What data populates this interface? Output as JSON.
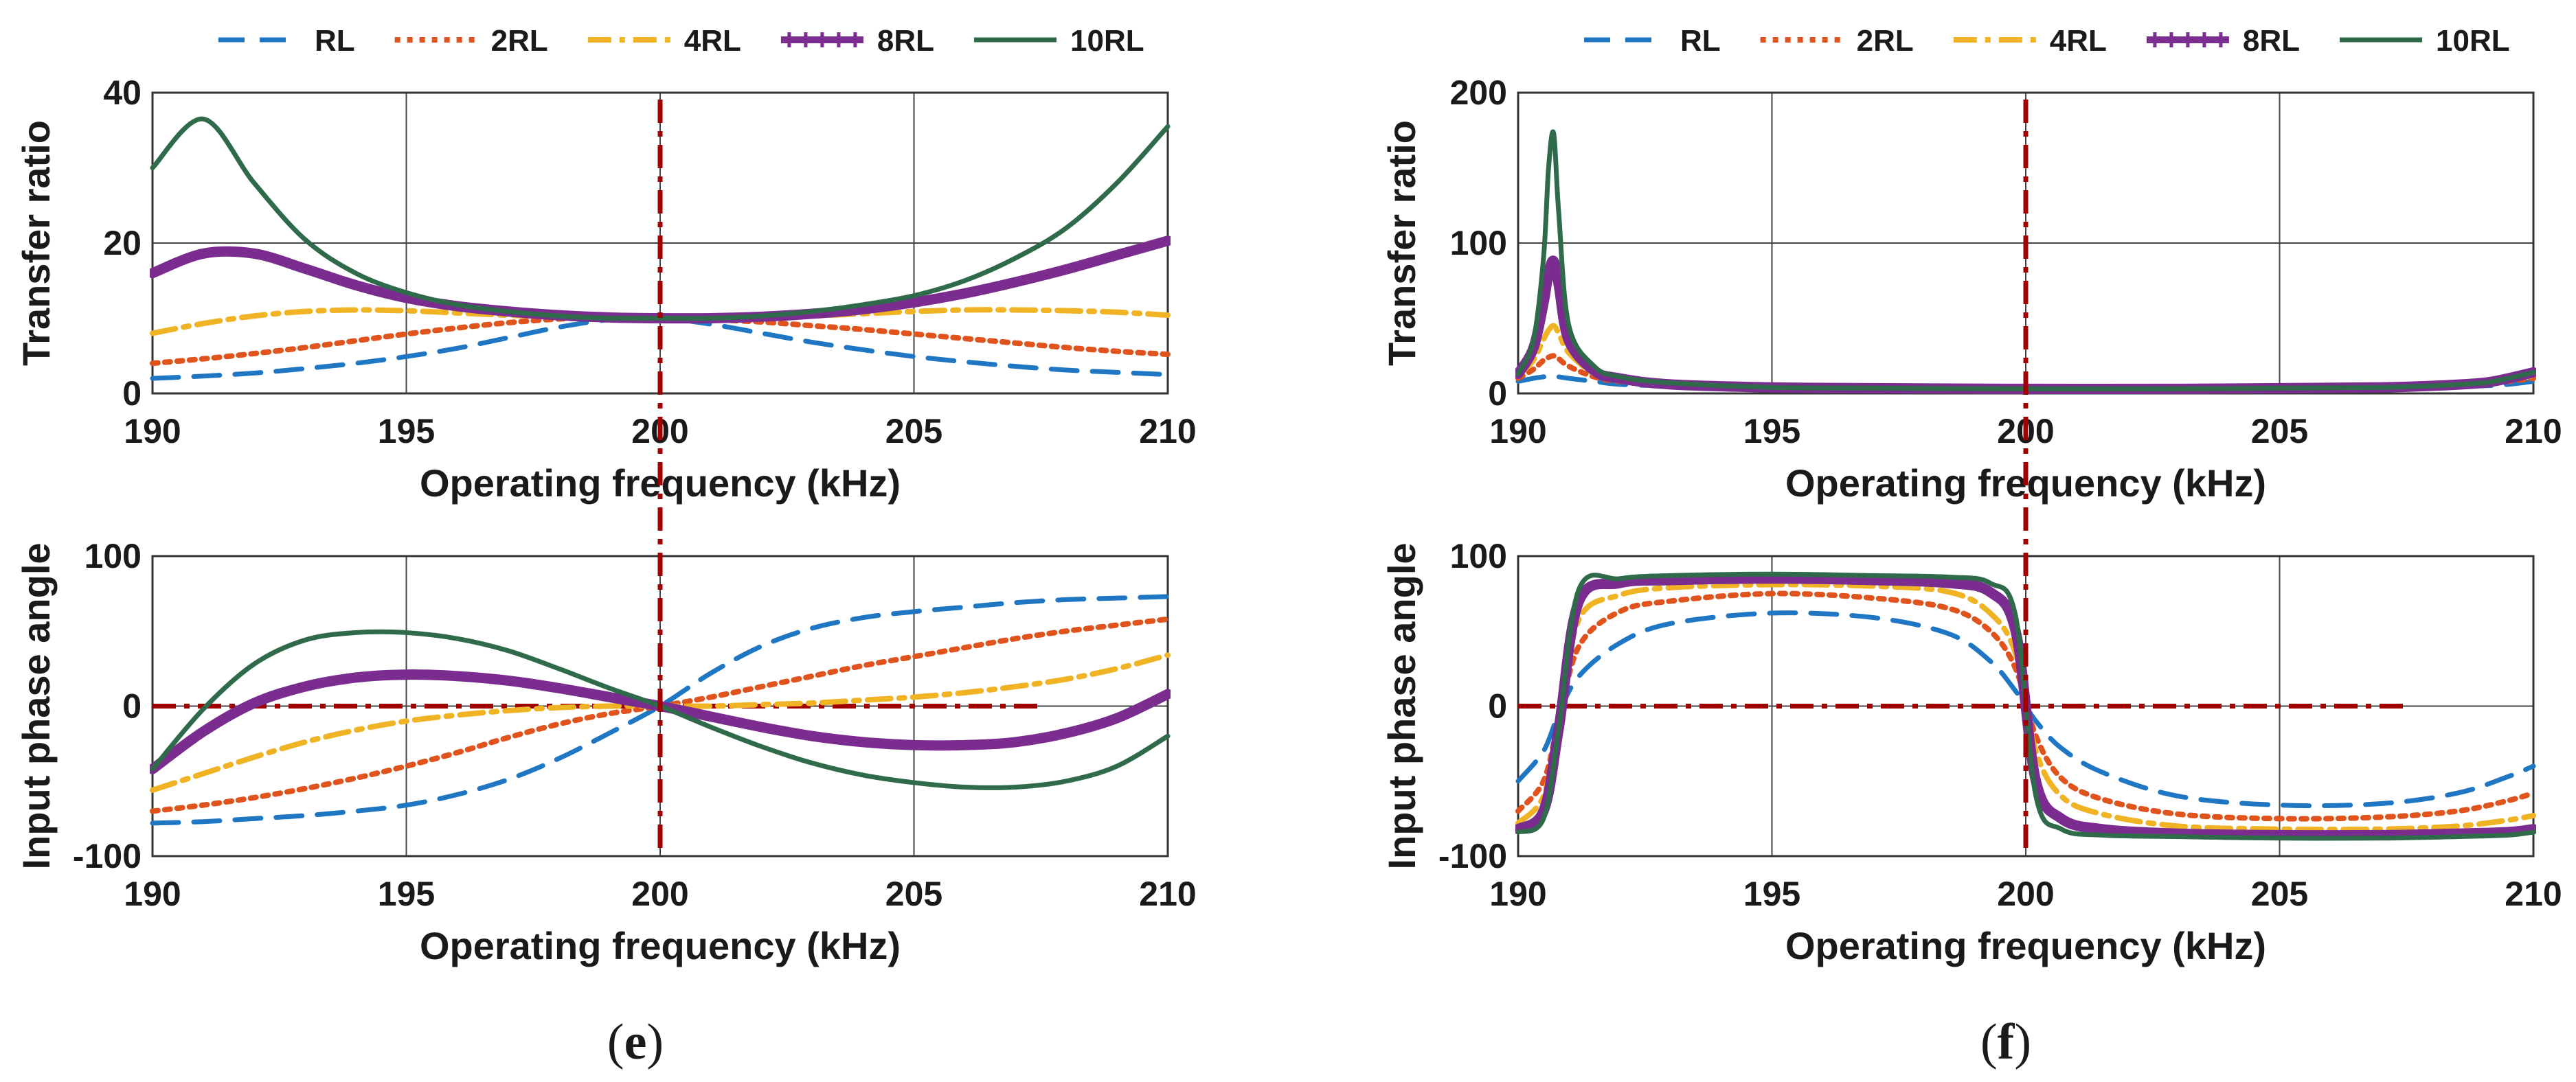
{
  "figure": {
    "label_e": "e",
    "label_f": "f"
  },
  "series_styles": [
    {
      "name": "RL",
      "color": "#1f77c4",
      "dash": "dash",
      "width": 7,
      "marker": false
    },
    {
      "name": "2RL",
      "color": "#e0531c",
      "dash": "dot",
      "width": 8,
      "marker": false
    },
    {
      "name": "4RL",
      "color": "#f0b323",
      "dash": "dashdot",
      "width": 8,
      "marker": false
    },
    {
      "name": "8RL",
      "color": "#7b2d8f",
      "dash": "solid",
      "width": 15,
      "marker": true
    },
    {
      "name": "10RL",
      "color": "#2f6b4a",
      "dash": "solid",
      "width": 7,
      "marker": false
    }
  ],
  "reference_line_color": "#a00000",
  "chart_data": [
    {
      "id": "e-top",
      "type": "line",
      "xlabel": "Operating frequency (kHz)",
      "ylabel": "Transfer ratio",
      "xlim": [
        190,
        210
      ],
      "ylim": [
        0,
        40
      ],
      "xticks": [
        190,
        195,
        200,
        205,
        210
      ],
      "yticks": [
        0,
        20,
        40
      ],
      "grid": true,
      "legend": "top",
      "x": [
        190,
        191,
        192,
        193,
        194,
        195,
        196,
        197,
        198,
        199,
        200,
        201,
        202,
        203,
        204,
        205,
        206,
        207,
        208,
        209,
        210
      ],
      "series": [
        {
          "name": "RL",
          "values": [
            2.0,
            2.3,
            2.7,
            3.3,
            4.0,
            4.9,
            6.0,
            7.4,
            8.8,
            9.8,
            10.0,
            9.2,
            8.0,
            6.8,
            5.8,
            4.9,
            4.2,
            3.6,
            3.1,
            2.8,
            2.5
          ]
        },
        {
          "name": "2RL",
          "values": [
            4.0,
            4.6,
            5.3,
            6.1,
            7.0,
            7.9,
            8.7,
            9.4,
            9.9,
            10.1,
            10.0,
            9.8,
            9.5,
            9.0,
            8.5,
            7.9,
            7.3,
            6.7,
            6.1,
            5.6,
            5.2
          ]
        },
        {
          "name": "4RL",
          "values": [
            8.0,
            9.3,
            10.3,
            10.9,
            11.1,
            11.0,
            10.7,
            10.4,
            10.2,
            10.0,
            10.0,
            10.0,
            10.1,
            10.3,
            10.6,
            10.9,
            11.1,
            11.1,
            11.0,
            10.8,
            10.4
          ]
        },
        {
          "name": "8RL",
          "values": [
            16.0,
            18.6,
            18.6,
            16.6,
            14.4,
            12.7,
            11.6,
            10.9,
            10.4,
            10.1,
            10.0,
            10.0,
            10.2,
            10.6,
            11.2,
            12.1,
            13.3,
            14.8,
            16.5,
            18.4,
            20.3
          ]
        },
        {
          "name": "10RL",
          "values": [
            30.0,
            36.5,
            28.0,
            20.5,
            16.0,
            13.4,
            11.8,
            10.9,
            10.3,
            10.0,
            10.0,
            10.0,
            10.3,
            10.9,
            11.8,
            13.0,
            15.0,
            18.0,
            22.0,
            28.0,
            35.5
          ]
        }
      ]
    },
    {
      "id": "e-bottom",
      "type": "line",
      "xlabel": "Operating frequency (kHz)",
      "ylabel": "Input phase angle",
      "xlim": [
        190,
        210
      ],
      "ylim": [
        -100,
        100
      ],
      "xticks": [
        190,
        195,
        200,
        205,
        210
      ],
      "yticks": [
        -100,
        0,
        100
      ],
      "grid": true,
      "x": [
        190,
        191,
        192,
        193,
        194,
        195,
        196,
        197,
        198,
        199,
        200,
        201,
        202,
        203,
        204,
        205,
        206,
        207,
        208,
        209,
        210
      ],
      "series": [
        {
          "name": "RL",
          "values": [
            -78,
            -77,
            -75,
            -73,
            -70,
            -66,
            -59,
            -49,
            -35,
            -18,
            0,
            22,
            40,
            52,
            59,
            63,
            66,
            69,
            71,
            72,
            73
          ]
        },
        {
          "name": "2RL",
          "values": [
            -70,
            -66,
            -61,
            -55,
            -48,
            -40,
            -31,
            -21,
            -12,
            -5,
            0,
            6,
            13,
            20,
            27,
            33,
            39,
            45,
            50,
            54,
            58
          ]
        },
        {
          "name": "4RL",
          "values": [
            -56,
            -45,
            -34,
            -24,
            -16,
            -10,
            -6,
            -3,
            -1,
            0,
            0,
            0,
            1,
            2,
            4,
            6,
            9,
            13,
            18,
            25,
            34
          ]
        },
        {
          "name": "8RL",
          "values": [
            -42,
            -17,
            2,
            13,
            19,
            21,
            20,
            17,
            12,
            6,
            0,
            -7,
            -14,
            -20,
            -24,
            -26,
            -26,
            -24,
            -18,
            -8,
            8
          ]
        },
        {
          "name": "10RL",
          "values": [
            -42,
            -2,
            28,
            44,
            49,
            49,
            45,
            37,
            25,
            12,
            0,
            -14,
            -27,
            -38,
            -46,
            -51,
            -54,
            -54,
            -50,
            -40,
            -20
          ]
        }
      ],
      "reference_lines": [
        {
          "type": "horizontal",
          "y": 0,
          "x_from": 190,
          "x_to": 207.5
        }
      ]
    },
    {
      "id": "f-top",
      "type": "line",
      "xlabel": "Operating frequency (kHz)",
      "ylabel": "Transfer ratio",
      "xlim": [
        190,
        210
      ],
      "ylim": [
        0,
        200
      ],
      "xticks": [
        190,
        195,
        200,
        205,
        210
      ],
      "yticks": [
        0,
        100,
        200
      ],
      "grid": true,
      "legend": "top",
      "x": [
        190,
        190.3,
        190.5,
        190.6,
        190.7,
        190.8,
        191,
        191.5,
        192,
        193,
        195,
        197,
        200,
        203,
        205,
        207,
        208,
        209,
        209.5,
        210
      ],
      "series": [
        {
          "name": "RL",
          "values": [
            8,
            10,
            11,
            11,
            11,
            11,
            10,
            8,
            6,
            5,
            4,
            3.5,
            3,
            3,
            3,
            3.5,
            4,
            5,
            6,
            8
          ]
        },
        {
          "name": "2RL",
          "values": [
            10,
            16,
            22,
            24,
            25,
            23,
            18,
            11,
            8,
            6,
            4,
            3.5,
            3,
            3,
            3.5,
            4,
            5,
            6,
            8,
            10
          ]
        },
        {
          "name": "4RL",
          "values": [
            12,
            22,
            36,
            42,
            45,
            40,
            27,
            13,
            9,
            6,
            4,
            3.5,
            3,
            3,
            3.5,
            4,
            5,
            7,
            9,
            12
          ]
        },
        {
          "name": "8RL",
          "values": [
            13,
            30,
            60,
            80,
            88,
            72,
            35,
            15,
            10,
            6,
            4,
            3.5,
            3,
            3,
            3.5,
            4,
            5,
            7,
            10,
            14
          ]
        },
        {
          "name": "10RL",
          "values": [
            13,
            35,
            90,
            150,
            173,
            120,
            45,
            18,
            11,
            7,
            4,
            3.5,
            3,
            3,
            3.5,
            4,
            5,
            7,
            10,
            14
          ]
        }
      ]
    },
    {
      "id": "f-bottom",
      "type": "line",
      "xlabel": "Operating frequency (kHz)",
      "ylabel": "Input phase angle",
      "xlim": [
        190,
        210
      ],
      "ylim": [
        -100,
        100
      ],
      "xticks": [
        190,
        195,
        200,
        205,
        210
      ],
      "yticks": [
        -100,
        0,
        100
      ],
      "grid": true,
      "x": [
        190,
        190.5,
        190.8,
        191.2,
        192,
        193,
        195,
        197,
        198.5,
        199.3,
        199.8,
        200.2,
        200.7,
        201.5,
        203,
        205,
        207,
        208.5,
        209.5,
        210
      ],
      "series": [
        {
          "name": "RL",
          "values": [
            -50,
            -30,
            -5,
            20,
            42,
            55,
            62,
            59,
            48,
            30,
            10,
            -10,
            -28,
            -44,
            -60,
            -66,
            -65,
            -58,
            -47,
            -40
          ]
        },
        {
          "name": "2RL",
          "values": [
            -70,
            -50,
            -10,
            40,
            63,
            70,
            75,
            72,
            65,
            50,
            25,
            -20,
            -48,
            -62,
            -72,
            -75,
            -74,
            -70,
            -63,
            -58
          ]
        },
        {
          "name": "4RL",
          "values": [
            -78,
            -60,
            -10,
            58,
            74,
            79,
            81,
            80,
            76,
            62,
            35,
            -30,
            -60,
            -72,
            -80,
            -82,
            -82,
            -80,
            -76,
            -73
          ]
        },
        {
          "name": "8RL",
          "values": [
            -82,
            -70,
            -15,
            70,
            82,
            84,
            85,
            84,
            82,
            76,
            50,
            -50,
            -75,
            -82,
            -85,
            -86,
            -86,
            -85,
            -84,
            -82
          ]
        },
        {
          "name": "10RL",
          "values": [
            -84,
            -75,
            -15,
            78,
            85,
            87,
            88,
            87,
            86,
            82,
            60,
            -60,
            -82,
            -86,
            -87,
            -88,
            -88,
            -87,
            -86,
            -84
          ]
        }
      ],
      "reference_lines": [
        {
          "type": "horizontal",
          "y": 0,
          "x_from": 190,
          "x_to": 207.5
        }
      ]
    }
  ],
  "resonance_marker": {
    "x": 200
  }
}
